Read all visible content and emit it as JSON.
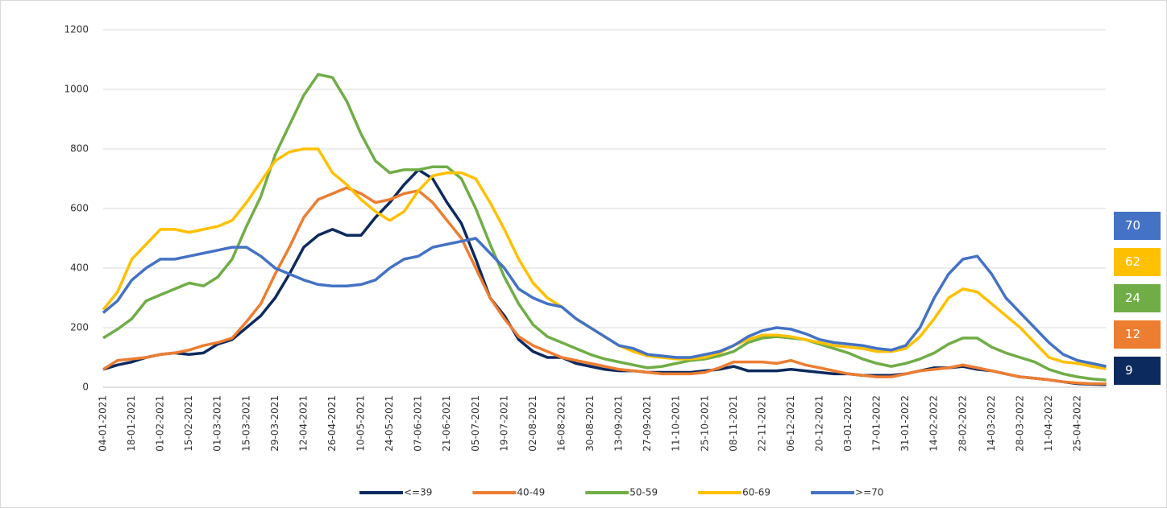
{
  "chart_data": {
    "type": "line",
    "categories": [
      "04-01-2021",
      null,
      "18-01-2021",
      null,
      "01-02-2021",
      null,
      "15-02-2021",
      null,
      "01-03-2021",
      null,
      "15-03-2021",
      null,
      "29-03-2021",
      null,
      "12-04-2021",
      null,
      "26-04-2021",
      null,
      "10-05-2021",
      null,
      "24-05-2021",
      null,
      "07-06-2021",
      null,
      "21-06-2021",
      null,
      "05-07-2021",
      null,
      "19-07-2021",
      null,
      "02-08-2021",
      null,
      "16-08-2021",
      null,
      "30-08-2021",
      null,
      "13-09-2021",
      null,
      "27-09-2021",
      null,
      "11-10-2021",
      null,
      "25-10-2021",
      null,
      "08-11-2021",
      null,
      "22-11-2021",
      null,
      "06-12-2021",
      null,
      "20-12-2021",
      null,
      "03-01-2022",
      null,
      "17-01-2022",
      null,
      "31-01-2022",
      null,
      "14-02-2022",
      null,
      "28-02-2022",
      null,
      "14-03-2022",
      null,
      "28-03-2022",
      null,
      "11-04-2022",
      null,
      "25-04-2022",
      null,
      null
    ],
    "series": [
      {
        "name": "<=39",
        "color": "#0d2a5e",
        "values": [
          60,
          75,
          85,
          100,
          110,
          115,
          110,
          115,
          145,
          160,
          200,
          240,
          300,
          380,
          470,
          510,
          530,
          510,
          510,
          570,
          620,
          680,
          730,
          700,
          620,
          550,
          430,
          300,
          240,
          160,
          120,
          100,
          100,
          80,
          70,
          60,
          55,
          55,
          50,
          50,
          50,
          50,
          55,
          60,
          70,
          55,
          55,
          55,
          60,
          55,
          50,
          45,
          45,
          40,
          40,
          40,
          45,
          55,
          65,
          65,
          70,
          60,
          55,
          45,
          35,
          30,
          25,
          18,
          12,
          10,
          9
        ]
      },
      {
        "name": "40-49",
        "color": "#ed7d31",
        "values": [
          60,
          90,
          95,
          100,
          110,
          115,
          125,
          140,
          150,
          165,
          220,
          280,
          380,
          470,
          570,
          630,
          650,
          670,
          650,
          620,
          630,
          650,
          660,
          620,
          560,
          500,
          400,
          300,
          230,
          170,
          140,
          120,
          100,
          90,
          80,
          70,
          60,
          55,
          50,
          45,
          45,
          45,
          50,
          65,
          85,
          85,
          85,
          80,
          90,
          75,
          65,
          55,
          45,
          40,
          35,
          35,
          45,
          55,
          60,
          65,
          75,
          65,
          55,
          45,
          35,
          30,
          25,
          18,
          14,
          12,
          12
        ]
      },
      {
        "name": "50-59",
        "color": "#70ad47",
        "values": [
          165,
          195,
          230,
          290,
          310,
          330,
          350,
          340,
          370,
          430,
          540,
          640,
          780,
          880,
          980,
          1050,
          1040,
          960,
          850,
          760,
          720,
          730,
          730,
          740,
          740,
          700,
          600,
          480,
          370,
          280,
          210,
          170,
          150,
          130,
          110,
          95,
          85,
          75,
          65,
          70,
          80,
          90,
          95,
          105,
          120,
          150,
          165,
          170,
          165,
          160,
          145,
          130,
          115,
          95,
          80,
          70,
          80,
          95,
          115,
          145,
          165,
          165,
          135,
          115,
          100,
          85,
          60,
          45,
          35,
          28,
          24
        ]
      },
      {
        "name": "60-69",
        "color": "#ffc000",
        "values": [
          260,
          320,
          430,
          480,
          530,
          530,
          520,
          530,
          540,
          560,
          620,
          690,
          760,
          790,
          800,
          800,
          720,
          680,
          630,
          590,
          560,
          590,
          660,
          710,
          720,
          720,
          700,
          620,
          530,
          430,
          350,
          300,
          270,
          230,
          200,
          170,
          140,
          120,
          105,
          100,
          95,
          95,
          100,
          115,
          140,
          160,
          175,
          175,
          170,
          160,
          150,
          140,
          135,
          130,
          120,
          120,
          130,
          170,
          230,
          300,
          330,
          320,
          280,
          240,
          200,
          150,
          100,
          85,
          80,
          70,
          62
        ]
      },
      {
        "name": ">=70",
        "color": "#4472c4",
        "values": [
          250,
          290,
          360,
          400,
          430,
          430,
          440,
          450,
          460,
          470,
          470,
          440,
          400,
          380,
          360,
          345,
          340,
          340,
          345,
          360,
          400,
          430,
          440,
          470,
          480,
          490,
          500,
          450,
          400,
          330,
          300,
          280,
          270,
          230,
          200,
          170,
          140,
          130,
          110,
          105,
          100,
          100,
          110,
          120,
          140,
          170,
          190,
          200,
          195,
          180,
          160,
          150,
          145,
          140,
          130,
          125,
          140,
          200,
          300,
          380,
          430,
          440,
          380,
          300,
          250,
          200,
          150,
          110,
          90,
          80,
          70
        ]
      }
    ],
    "ylim": [
      0,
      1200
    ],
    "yticks": [
      0,
      200,
      400,
      600,
      800,
      1000,
      1200
    ],
    "grid": true
  }
}
